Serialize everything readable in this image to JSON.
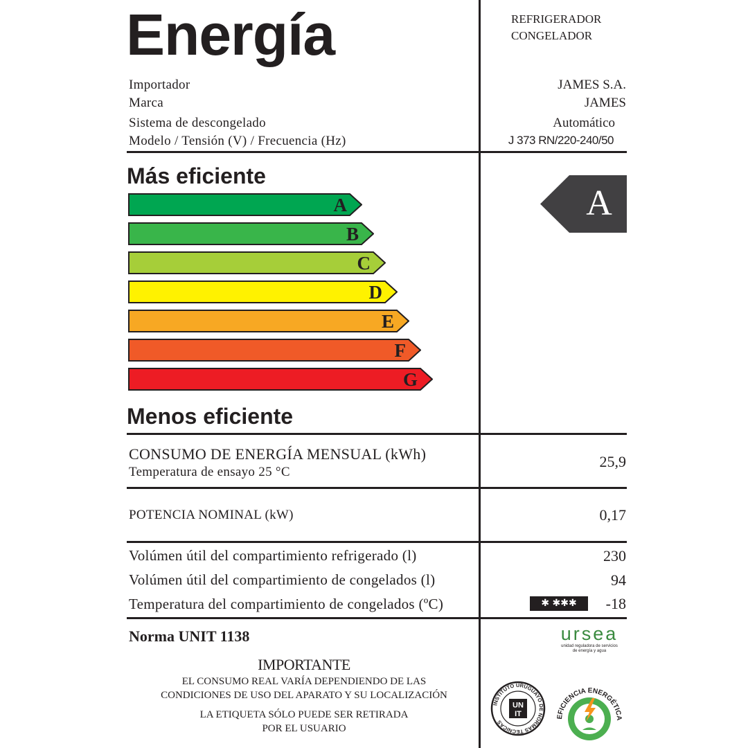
{
  "header": {
    "title": "Energía",
    "category_line1": "REFRIGERADOR",
    "category_line2": "CONGELADOR"
  },
  "info": [
    {
      "label": "Importador",
      "value": "JAMES S.A."
    },
    {
      "label": "Marca",
      "value": "JAMES"
    },
    {
      "label": "Sistema de descongelado",
      "value": "Automático"
    },
    {
      "label": "Modelo / Tensión (V) / Frecuencia (Hz)",
      "value": "J 373 RN/220-240/50"
    }
  ],
  "scale": {
    "top_label": "Más eficiente",
    "bottom_label": "Menos eficiente",
    "classes": [
      {
        "letter": "A",
        "color": "#00a651"
      },
      {
        "letter": "B",
        "color": "#39b54a"
      },
      {
        "letter": "C",
        "color": "#a6ce39"
      },
      {
        "letter": "D",
        "color": "#fff200"
      },
      {
        "letter": "E",
        "color": "#f7a823"
      },
      {
        "letter": "F",
        "color": "#f05a28"
      },
      {
        "letter": "G",
        "color": "#ed1c24"
      }
    ],
    "rating": "A",
    "rating_color": "#414042"
  },
  "consumption": {
    "label": "CONSUMO DE ENERGÍA MENSUAL (kWh)",
    "sublabel": "Temperatura de ensayo 25 °C",
    "value": "25,9"
  },
  "power": {
    "label": "POTENCIA NOMINAL (kW)",
    "value": "0,17"
  },
  "volumes": [
    {
      "label": "Volúmen útil del compartimiento refrigerado (l)",
      "value": "230"
    },
    {
      "label": "Volúmen útil del compartimiento de congelados (l)",
      "value": "94"
    },
    {
      "label": "Temperatura del compartimiento de congelados (ºC)",
      "value": "-18"
    }
  ],
  "star_badge": "✱ ✱✱✱",
  "norma": "Norma UNIT 1138",
  "important": {
    "title": "IMPORTANTE",
    "line1": "EL CONSUMO REAL VARÍA DEPENDIENDO DE LAS",
    "line2": "CONDICIONES DE USO DEL APARATO Y SU LOCALIZACIÓN",
    "line3": "LA ETIQUETA SÓLO PUEDE SER RETIRADA",
    "line4": "POR EL USUARIO"
  },
  "logos": {
    "ursea": "ursea",
    "ursea_sub1": "unidad reguladora de servicios",
    "ursea_sub2": "de energía y agua",
    "unit_ring": "INSTITUTO URUGUAYO DE NORMAS TÉCNICAS",
    "unit_top": "UN",
    "unit_bottom": "IT",
    "eficiencia": "EFICIENCIA ENERGÉTICA"
  }
}
